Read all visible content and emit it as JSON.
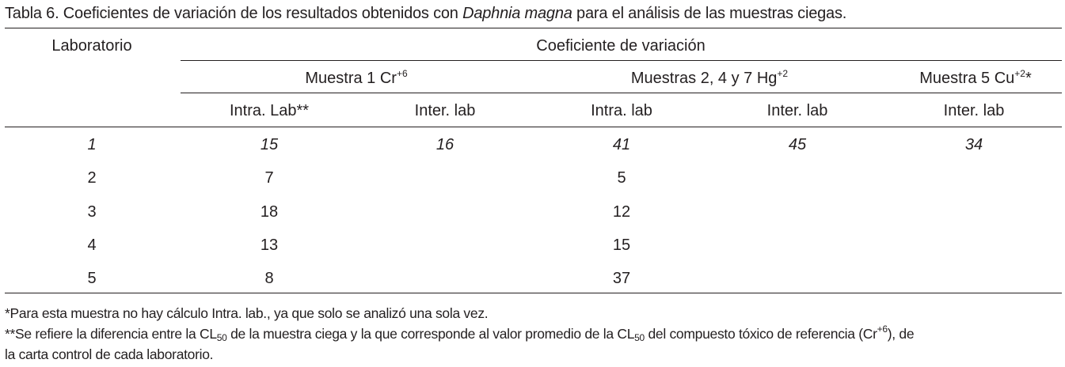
{
  "caption": {
    "prefix": "Tabla 6. Coeficientes de variación de los resultados obtenidos con ",
    "species": "Daphnia magna",
    "suffix": " para el análisis de las muestras ciegas."
  },
  "header": {
    "laboratorio": "Laboratorio",
    "coeficiente": "Coeficiente de variación",
    "muestra1": {
      "text": "Muestra 1 Cr",
      "sup": "+6"
    },
    "muestra247": {
      "text": "Muestras 2, 4 y 7 Hg",
      "sup": "+2"
    },
    "muestra5": {
      "text": "Muestra 5 Cu",
      "sup": "+2",
      "suffix": "*"
    },
    "sub": [
      "Intra. Lab**",
      "Inter. lab",
      "Intra. lab",
      "Inter. lab",
      "Inter. lab"
    ]
  },
  "rows": [
    {
      "lab": "1",
      "values": [
        "15",
        "16",
        "41",
        "45",
        "34"
      ]
    },
    {
      "lab": "2",
      "values": [
        "7",
        "",
        "5",
        "",
        ""
      ]
    },
    {
      "lab": "3",
      "values": [
        "18",
        "",
        "12",
        "",
        ""
      ]
    },
    {
      "lab": "4",
      "values": [
        "13",
        "",
        "15",
        "",
        ""
      ]
    },
    {
      "lab": "5",
      "values": [
        "8",
        "",
        "37",
        "",
        ""
      ]
    }
  ],
  "footnotes": {
    "note1": "*Para esta muestra no hay cálculo Intra. lab., ya que solo se analizó una sola vez.",
    "note2_a": "**Se refiere la diferencia entre la CL",
    "note2_sub1": "50",
    "note2_b": " de la muestra ciega y la que corresponde al valor promedio de la CL",
    "note2_sub2": "50",
    "note2_c": " del compuesto tóxico de referencia (Cr",
    "note2_sup": "+6",
    "note2_d": "), de",
    "note3": "la carta control de cada laboratorio."
  }
}
